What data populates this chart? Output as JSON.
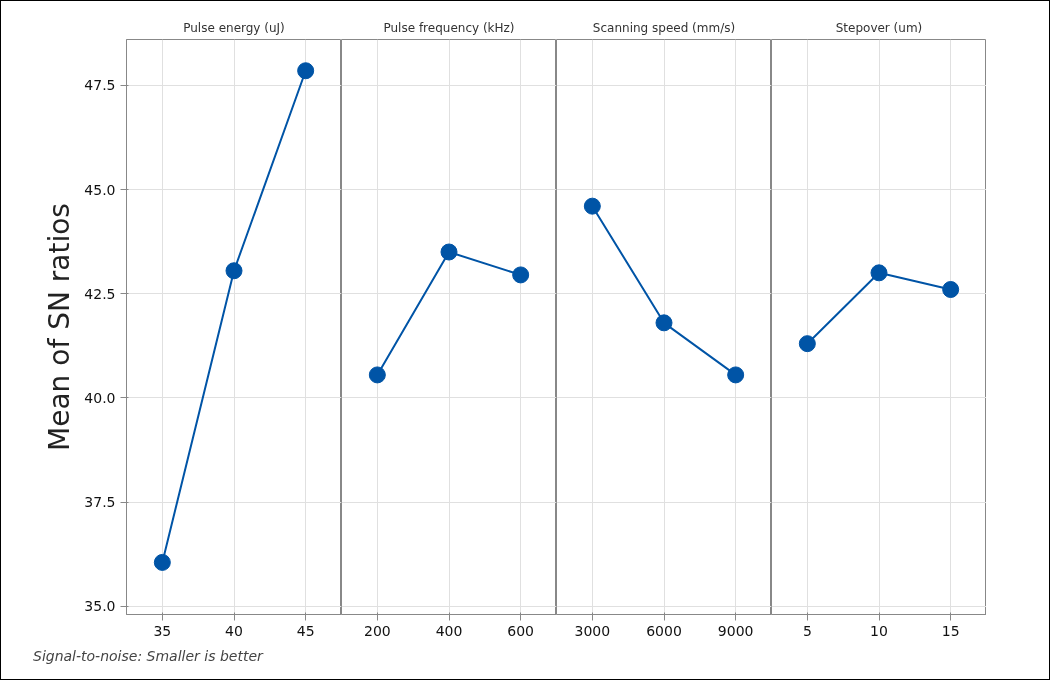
{
  "chart_data": [
    {
      "type": "line",
      "title": "Pulse energy (uJ)",
      "ylabel": "Mean of SN ratios",
      "categories": [
        "35",
        "40",
        "45"
      ],
      "values": [
        36.05,
        43.05,
        47.85
      ],
      "color": "#0054a6",
      "ylim": [
        34.8,
        48.6
      ],
      "yticks": [
        {
          "value": 35,
          "label": "35.0"
        },
        {
          "value": 37.5,
          "label": "37.5"
        },
        {
          "value": 40,
          "label": "40.0"
        },
        {
          "value": 42.5,
          "label": "42.5"
        },
        {
          "value": 45,
          "label": "45.0"
        },
        {
          "value": 47.5,
          "label": "47.5"
        }
      ],
      "grid": true,
      "marker": "circle",
      "line_style": "solid",
      "annotations": [
        "Signal-to-noise: Smaller is better"
      ]
    },
    {
      "type": "line",
      "title": "Pulse frequency (kHz)",
      "categories": [
        "200",
        "400",
        "600"
      ],
      "values": [
        40.55,
        43.5,
        42.95
      ],
      "color": "#0054a6",
      "ylim": [
        34.8,
        48.6
      ],
      "yticks": [
        35,
        37.5,
        40,
        42.5,
        45,
        47.5
      ],
      "grid": true,
      "marker": "circle",
      "line_style": "solid",
      "tick_labels": "x"
    },
    {
      "type": "line",
      "title": "Scanning speed (mm/s)",
      "categories": [
        "3000",
        "6000",
        "9000"
      ],
      "values": [
        44.6,
        41.8,
        40.55
      ],
      "color": "#0054a6",
      "ylim": [
        34.8,
        48.6
      ],
      "yticks": [
        35,
        37.5,
        40,
        42.5,
        45,
        47.5
      ],
      "grid": true,
      "marker": "circle",
      "line_style": "solid",
      "tick_labels": "x"
    },
    {
      "type": "line",
      "title": "Stepover (um)",
      "categories": [
        "5",
        "10",
        "15"
      ],
      "values": [
        41.3,
        43.0,
        42.6
      ],
      "color": "#0054a6",
      "ylim": [
        34.8,
        48.6
      ],
      "yticks": [
        35,
        37.5,
        40,
        42.5,
        45,
        47.5
      ],
      "grid": true,
      "marker": "circle",
      "line_style": "solid",
      "tick_labels": "x"
    }
  ]
}
